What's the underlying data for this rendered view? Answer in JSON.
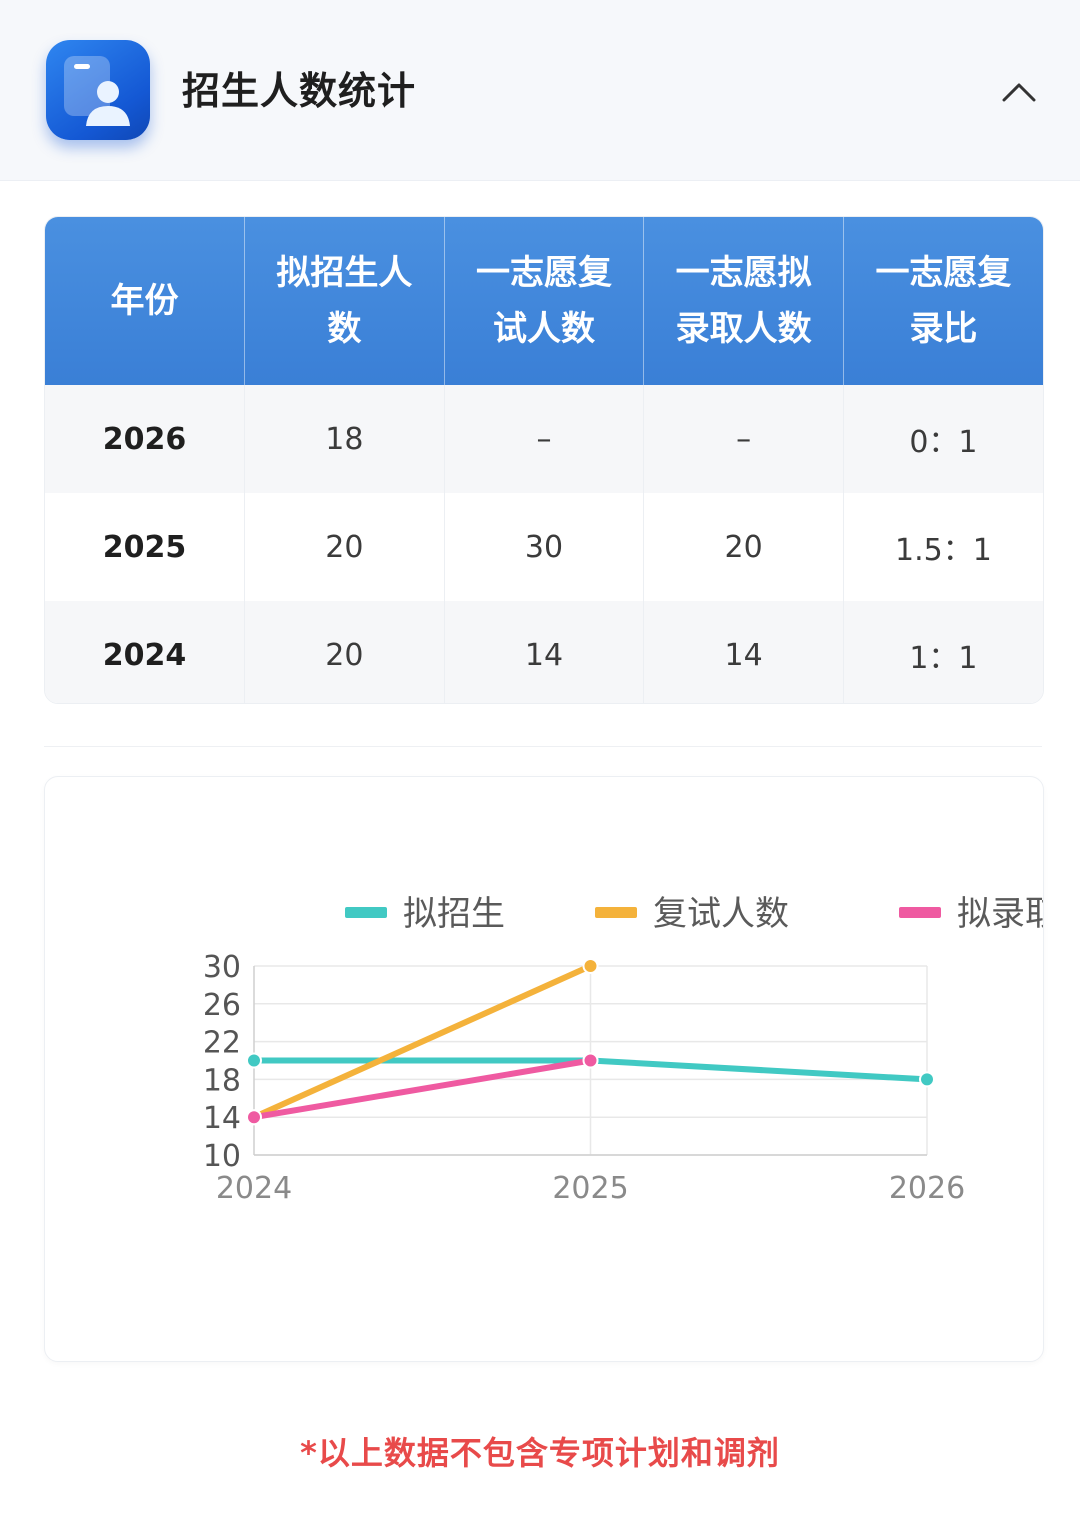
{
  "header": {
    "title": "招生人数统计",
    "icon": "profile-card-icon",
    "collapse_icon": "chevron-up-icon"
  },
  "table": {
    "headers": [
      [
        "年份"
      ],
      [
        "拟招生人",
        "数"
      ],
      [
        "一志愿复",
        "试人数"
      ],
      [
        "一志愿拟",
        "录取人数"
      ],
      [
        "一志愿复",
        "录比"
      ]
    ],
    "rows": [
      [
        "2026",
        "18",
        "–",
        "–",
        "0：1"
      ],
      [
        "2025",
        "20",
        "30",
        "20",
        "1.5：1"
      ],
      [
        "2024",
        "20",
        "14",
        "14",
        "1：1"
      ]
    ]
  },
  "chart_data": {
    "type": "line",
    "x": [
      "2024",
      "2025",
      "2026"
    ],
    "yticks": [
      "30",
      "26",
      "22",
      "18",
      "14",
      "10"
    ],
    "ylim": [
      10,
      30
    ],
    "grid": true,
    "legend_position": "top-center",
    "series": [
      {
        "name": "拟招生",
        "color": "#41c9c3",
        "values": [
          20,
          20,
          18
        ]
      },
      {
        "name": "复试人数",
        "color": "#f4b23b",
        "values": [
          14,
          30,
          null
        ]
      },
      {
        "name": "拟录取",
        "color": "#ef5aa1",
        "values": [
          14,
          20,
          null
        ]
      }
    ]
  },
  "footnote": "*以上数据不包含专项计划和调剂"
}
